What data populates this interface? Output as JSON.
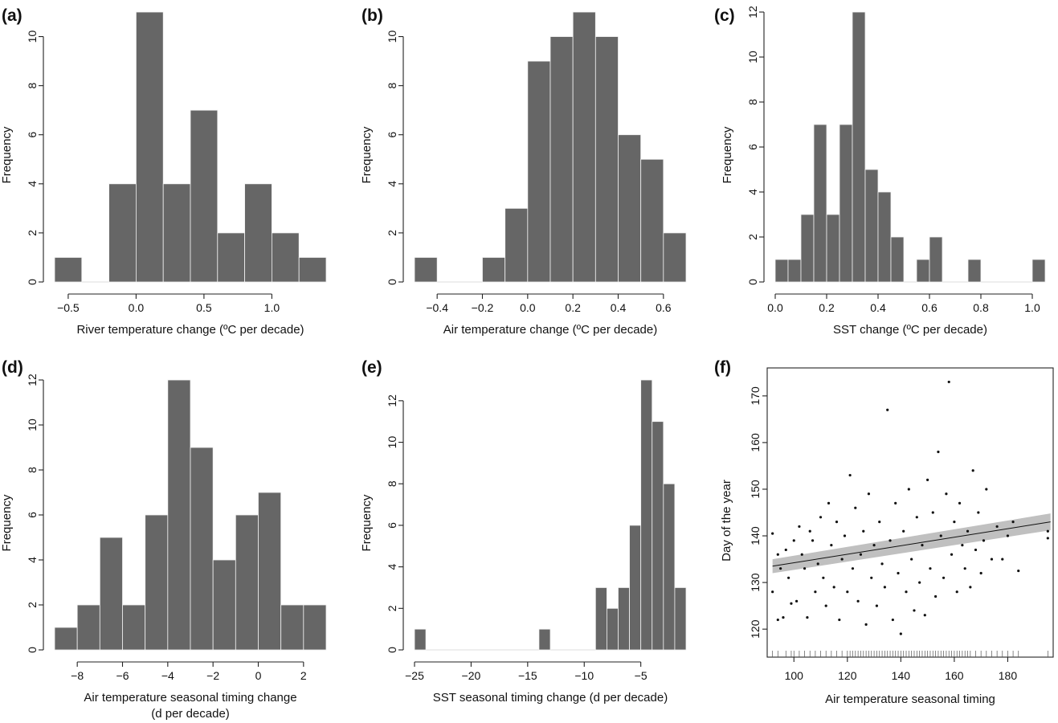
{
  "colors": {
    "bar": "#666666",
    "bar_edge": "#f2f2f2",
    "axis": "#222222",
    "point": "#111111",
    "band": "#c0c0c0",
    "trend": "#111111"
  },
  "chart_data": [
    {
      "id": "a",
      "panel_label": "(a)",
      "type": "bar",
      "xlabel": "River temperature change (ºC per decade)",
      "xlabel_line2": "",
      "ylabel": "Frequency",
      "bin_edges": [
        -0.6,
        -0.4,
        -0.2,
        0.0,
        0.2,
        0.4,
        0.6,
        0.8,
        1.0,
        1.2,
        1.4
      ],
      "values": [
        1,
        0,
        4,
        11,
        4,
        7,
        2,
        4,
        2,
        1
      ],
      "xlim": [
        -0.6,
        1.4
      ],
      "ylim": [
        0,
        11
      ],
      "xticks": [
        -0.5,
        0.0,
        0.5,
        1.0
      ],
      "xtick_labels": [
        "−0.5",
        "0.0",
        "0.5",
        "1.0"
      ],
      "yticks": [
        0,
        2,
        4,
        6,
        8,
        10
      ],
      "ytick_labels": [
        "0",
        "2",
        "4",
        "6",
        "8",
        "10"
      ]
    },
    {
      "id": "b",
      "panel_label": "(b)",
      "type": "bar",
      "xlabel": "Air temperature change (ºC per decade)",
      "xlabel_line2": "",
      "ylabel": "Frequency",
      "bin_edges": [
        -0.5,
        -0.4,
        -0.3,
        -0.2,
        -0.1,
        0.0,
        0.1,
        0.2,
        0.3,
        0.4,
        0.5,
        0.6,
        0.7
      ],
      "values": [
        1,
        0,
        0,
        1,
        3,
        9,
        10,
        11,
        10,
        6,
        5,
        2
      ],
      "xlim": [
        -0.5,
        0.7
      ],
      "ylim": [
        0,
        11
      ],
      "xticks": [
        -0.4,
        -0.2,
        0.0,
        0.2,
        0.4,
        0.6
      ],
      "xtick_labels": [
        "−0.4",
        "−0.2",
        "0.0",
        "0.2",
        "0.4",
        "0.6"
      ],
      "yticks": [
        0,
        2,
        4,
        6,
        8,
        10
      ],
      "ytick_labels": [
        "0",
        "2",
        "4",
        "6",
        "8",
        "10"
      ]
    },
    {
      "id": "c",
      "panel_label": "(c)",
      "type": "bar",
      "xlabel": "SST change (ºC per decade)",
      "xlabel_line2": "",
      "ylabel": "Frequency",
      "bin_edges": [
        0.0,
        0.05,
        0.1,
        0.15,
        0.2,
        0.25,
        0.3,
        0.35,
        0.4,
        0.45,
        0.5,
        0.55,
        0.6,
        0.65,
        0.7,
        0.75,
        0.8,
        0.85,
        0.9,
        0.95,
        1.0,
        1.05
      ],
      "values": [
        1,
        1,
        3,
        7,
        3,
        7,
        12,
        5,
        4,
        2,
        0,
        1,
        2,
        0,
        0,
        1,
        0,
        0,
        0,
        0,
        1
      ],
      "xlim": [
        0.0,
        1.05
      ],
      "ylim": [
        0,
        12
      ],
      "xticks": [
        0.0,
        0.2,
        0.4,
        0.6,
        0.8,
        1.0
      ],
      "xtick_labels": [
        "0.0",
        "0.2",
        "0.4",
        "0.6",
        "0.8",
        "1.0"
      ],
      "yticks": [
        0,
        2,
        4,
        6,
        8,
        10,
        12
      ],
      "ytick_labels": [
        "0",
        "2",
        "4",
        "6",
        "8",
        "10",
        "12"
      ]
    },
    {
      "id": "d",
      "panel_label": "(d)",
      "type": "bar",
      "xlabel": "Air temperature seasonal timing change",
      "xlabel_line2": "(d per decade)",
      "ylabel": "Frequency",
      "bin_edges": [
        -9,
        -8,
        -7,
        -6,
        -5,
        -4,
        -3,
        -2,
        -1,
        0,
        1,
        2,
        3
      ],
      "values": [
        1,
        2,
        5,
        2,
        6,
        12,
        9,
        4,
        6,
        7,
        2,
        2
      ],
      "xlim": [
        -9,
        3
      ],
      "ylim": [
        0,
        12
      ],
      "xticks": [
        -8,
        -6,
        -4,
        -2,
        0,
        2
      ],
      "xtick_labels": [
        "−8",
        "−6",
        "−4",
        "−2",
        "0",
        "2"
      ],
      "yticks": [
        0,
        2,
        4,
        6,
        8,
        10,
        12
      ],
      "ytick_labels": [
        "0",
        "2",
        "4",
        "6",
        "8",
        "10",
        "12"
      ]
    },
    {
      "id": "e",
      "panel_label": "(e)",
      "type": "bar",
      "xlabel": "SST seasonal timing change (d per decade)",
      "xlabel_line2": "",
      "ylabel": "Frequency",
      "bin_edges": [
        -25,
        -24,
        -23,
        -22,
        -21,
        -20,
        -19,
        -18,
        -17,
        -16,
        -15,
        -14,
        -13,
        -12,
        -11,
        -10,
        -9,
        -8,
        -7,
        -6,
        -5,
        -4,
        -3,
        -2,
        -1
      ],
      "values": [
        1,
        0,
        0,
        0,
        0,
        0,
        0,
        0,
        0,
        0,
        0,
        1,
        0,
        0,
        0,
        0,
        3,
        2,
        3,
        6,
        13,
        11,
        8,
        3
      ],
      "xlim": [
        -25,
        -1
      ],
      "ylim": [
        0,
        13
      ],
      "xticks": [
        -25,
        -20,
        -15,
        -10,
        -5
      ],
      "xtick_labels": [
        "−25",
        "−20",
        "−15",
        "−10",
        "−5"
      ],
      "yticks": [
        0,
        2,
        4,
        6,
        8,
        10,
        12
      ],
      "ytick_labels": [
        "0",
        "2",
        "4",
        "6",
        "8",
        "10",
        "12"
      ]
    },
    {
      "id": "f",
      "panel_label": "(f)",
      "type": "scatter",
      "xlabel": "Air temperature seasonal timing",
      "xlabel_line2": "",
      "ylabel": "Day of the year",
      "xlim": [
        90,
        197
      ],
      "ylim": [
        114,
        176
      ],
      "xticks": [
        100,
        120,
        140,
        160,
        180
      ],
      "xtick_labels": [
        "100",
        "120",
        "140",
        "160",
        "180"
      ],
      "yticks": [
        120,
        130,
        140,
        150,
        160,
        170
      ],
      "ytick_labels": [
        "120",
        "130",
        "140",
        "150",
        "160",
        "170"
      ],
      "trend": {
        "x": [
          92,
          196
        ],
        "y": [
          133.5,
          143.0
        ],
        "band_low": [
          132.0,
          141.2
        ],
        "band_high": [
          135.0,
          144.8
        ]
      },
      "points": [
        [
          92,
          140.5
        ],
        [
          92,
          128
        ],
        [
          94,
          136
        ],
        [
          94,
          122
        ],
        [
          95,
          133
        ],
        [
          96,
          122.5
        ],
        [
          97,
          137
        ],
        [
          98,
          131
        ],
        [
          99,
          125.5
        ],
        [
          100,
          139
        ],
        [
          101,
          126
        ],
        [
          102,
          142
        ],
        [
          103,
          136
        ],
        [
          104,
          133
        ],
        [
          105,
          122.5
        ],
        [
          106,
          141
        ],
        [
          107,
          139
        ],
        [
          108,
          128
        ],
        [
          109,
          134
        ],
        [
          110,
          144
        ],
        [
          111,
          131
        ],
        [
          112,
          125
        ],
        [
          113,
          147
        ],
        [
          114,
          138
        ],
        [
          115,
          129
        ],
        [
          116,
          143
        ],
        [
          117,
          122
        ],
        [
          118,
          135
        ],
        [
          119,
          140
        ],
        [
          120,
          128
        ],
        [
          121,
          153
        ],
        [
          122,
          133
        ],
        [
          123,
          146
        ],
        [
          124,
          126
        ],
        [
          125,
          136
        ],
        [
          126,
          141
        ],
        [
          127,
          121
        ],
        [
          128,
          149
        ],
        [
          129,
          131
        ],
        [
          130,
          138
        ],
        [
          131,
          125
        ],
        [
          132,
          143
        ],
        [
          133,
          134
        ],
        [
          134,
          129
        ],
        [
          135,
          167
        ],
        [
          136,
          139
        ],
        [
          137,
          122
        ],
        [
          138,
          147
        ],
        [
          139,
          132
        ],
        [
          140,
          119
        ],
        [
          141,
          141
        ],
        [
          142,
          128
        ],
        [
          143,
          150
        ],
        [
          144,
          135
        ],
        [
          145,
          124
        ],
        [
          146,
          144
        ],
        [
          147,
          130
        ],
        [
          148,
          138
        ],
        [
          149,
          123
        ],
        [
          150,
          152
        ],
        [
          151,
          133
        ],
        [
          152,
          145
        ],
        [
          153,
          127
        ],
        [
          154,
          158
        ],
        [
          155,
          140
        ],
        [
          156,
          131
        ],
        [
          157,
          149
        ],
        [
          158,
          173
        ],
        [
          159,
          136
        ],
        [
          160,
          143
        ],
        [
          161,
          128
        ],
        [
          162,
          147
        ],
        [
          163,
          138
        ],
        [
          164,
          133
        ],
        [
          165,
          141
        ],
        [
          166,
          129
        ],
        [
          167,
          154
        ],
        [
          168,
          137
        ],
        [
          169,
          145
        ],
        [
          170,
          132
        ],
        [
          171,
          139
        ],
        [
          172,
          150
        ],
        [
          174,
          135
        ],
        [
          176,
          142
        ],
        [
          178,
          135
        ],
        [
          180,
          140
        ],
        [
          182,
          143
        ],
        [
          184,
          132.5
        ],
        [
          195,
          141
        ],
        [
          195,
          139.5
        ]
      ],
      "rug_x": [
        92,
        94,
        97,
        99,
        100,
        102,
        104,
        106,
        108,
        110,
        112,
        114,
        116,
        118,
        120,
        121,
        122,
        123,
        124,
        125,
        126,
        127,
        128,
        129,
        130,
        131,
        132,
        133,
        134,
        135,
        136,
        137,
        138,
        139,
        140,
        141,
        142,
        143,
        144,
        145,
        146,
        147,
        148,
        149,
        150,
        151,
        152,
        153,
        154,
        155,
        156,
        157,
        158,
        159,
        160,
        161,
        162,
        163,
        164,
        165,
        166,
        168,
        170,
        172,
        174,
        176,
        178,
        180,
        182,
        184,
        195
      ]
    }
  ]
}
